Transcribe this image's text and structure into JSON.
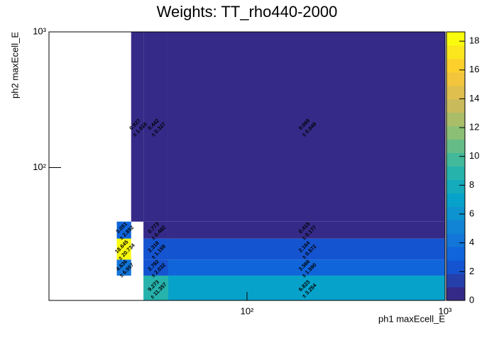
{
  "chart_data": {
    "type": "heatmap",
    "title": "Weights: TT_rho440-2000",
    "x_label": "ph1 maxEcell_E",
    "y_label": "ph2 maxEcell_E",
    "log_x": true,
    "log_y": true,
    "colormap": "bird",
    "xlim": [
      10,
      1000
    ],
    "ylim": [
      10.5,
      1000
    ],
    "zlim": [
      0,
      18.645
    ],
    "xticks": [
      {
        "value": 100,
        "label": "10²"
      },
      {
        "value": 1000,
        "label": "10³"
      }
    ],
    "yticks": [
      {
        "value": 100,
        "label": "10²"
      },
      {
        "value": 1000,
        "label": "10³"
      }
    ],
    "zticks": [
      0,
      2,
      4,
      6,
      8,
      10,
      12,
      14,
      16,
      18
    ],
    "x_edges": [
      22,
      26,
      30,
      40,
      1000
    ],
    "y_edges": [
      10.5,
      16,
      21,
      30,
      40,
      1000
    ],
    "cells": [
      {
        "x": 0,
        "y": 1,
        "value": 4.636,
        "error": 6.957,
        "error_label": "± 6.957"
      },
      {
        "x": 0,
        "y": 2,
        "value": 18.645,
        "error": 20.734,
        "error_label": "± 20.734"
      },
      {
        "x": 0,
        "y": 3,
        "value": 3.091,
        "error": 2.892,
        "error_label": "± 2.892"
      },
      {
        "x": 1,
        "y": 4,
        "value": 0.927,
        "error": 1.016,
        "error_label": "± 1.016"
      },
      {
        "x": 2,
        "y": 0,
        "value": 9.273,
        "error": 11.357,
        "error_label": "± 11.357"
      },
      {
        "x": 2,
        "y": 1,
        "value": 2.782,
        "error": 2.032,
        "error_label": "± 2.032"
      },
      {
        "x": 2,
        "y": 2,
        "value": 2.318,
        "error": 1.159,
        "error_label": "± 1.159"
      },
      {
        "x": 2,
        "y": 3,
        "value": 0.773,
        "error": 0.482,
        "error_label": "± 0.482"
      },
      {
        "x": 2,
        "y": 4,
        "value": 0.442,
        "error": 0.327,
        "error_label": "± 0.327"
      },
      {
        "x": 3,
        "y": 0,
        "value": 6.823,
        "error": 3.254,
        "error_label": "± 3.254"
      },
      {
        "x": 3,
        "y": 1,
        "value": 3.566,
        "error": 1.59,
        "error_label": "± 1.590"
      },
      {
        "x": 3,
        "y": 2,
        "value": 2.164,
        "error": 0.572,
        "error_label": "± 0.572"
      },
      {
        "x": 3,
        "y": 3,
        "value": 0.415,
        "error": 0.177,
        "error_label": "± 0.177"
      },
      {
        "x": 3,
        "y": 4,
        "value": 0.069,
        "error": 0.049,
        "error_label": "± 0.049"
      }
    ]
  }
}
